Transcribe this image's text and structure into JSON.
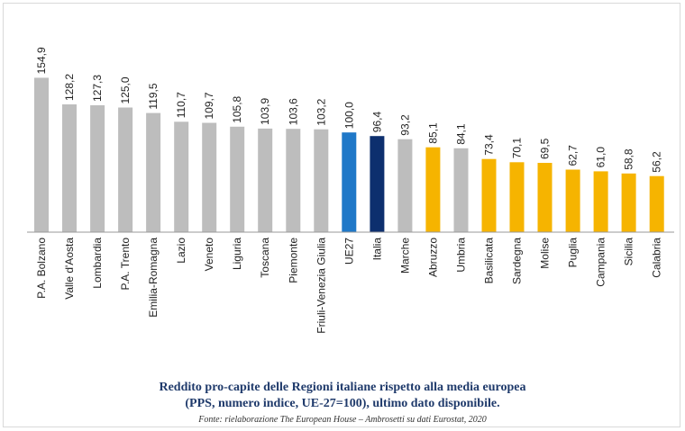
{
  "chart_data": {
    "type": "bar",
    "categories": [
      "P.A. Bolzano",
      "Valle d'Aosta",
      "Lombardia",
      "P.A. Trento",
      "Emilia-Romagna",
      "Lazio",
      "Veneto",
      "Liguria",
      "Toscana",
      "Piemonte",
      "Friuli-Venezia Giulia",
      "UE27",
      "Italia",
      "Marche",
      "Abruzzo",
      "Umbria",
      "Basilicata",
      "Sardegna",
      "Molise",
      "Puglia",
      "Campania",
      "Sicilia",
      "Calabria"
    ],
    "values": [
      154.9,
      128.2,
      127.3,
      125.0,
      119.5,
      110.7,
      109.7,
      105.8,
      103.9,
      103.6,
      103.2,
      100.0,
      96.4,
      93.2,
      85.1,
      84.1,
      73.4,
      70.1,
      69.5,
      62.7,
      61.0,
      58.8,
      56.2
    ],
    "value_labels": [
      "154,9",
      "128,2",
      "127,3",
      "125,0",
      "119,5",
      "110,7",
      "109,7",
      "105,8",
      "103,9",
      "103,6",
      "103,2",
      "100,0",
      "96,4",
      "93,2",
      "85,1",
      "84,1",
      "73,4",
      "70,1",
      "69,5",
      "62,7",
      "61,0",
      "58,8",
      "56,2"
    ],
    "bar_colors": [
      "#bdbdbd",
      "#bdbdbd",
      "#bdbdbd",
      "#bdbdbd",
      "#bdbdbd",
      "#bdbdbd",
      "#bdbdbd",
      "#bdbdbd",
      "#bdbdbd",
      "#bdbdbd",
      "#bdbdbd",
      "#1f78c8",
      "#0d2f6e",
      "#bdbdbd",
      "#f6b400",
      "#bdbdbd",
      "#f6b400",
      "#f6b400",
      "#f6b400",
      "#f6b400",
      "#f6b400",
      "#f6b400",
      "#f6b400"
    ],
    "ylim": [
      0,
      160
    ],
    "grid": false,
    "title": "Reddito pro-capite delle Regioni italiane rispetto alla media europea",
    "subtitle": "(PPS, numero indice, UE-27=100), ultimo dato disponibile.",
    "source": "Fonte: rielaborazione The European House – Ambrosetti su dati Eurostat, 2020"
  }
}
